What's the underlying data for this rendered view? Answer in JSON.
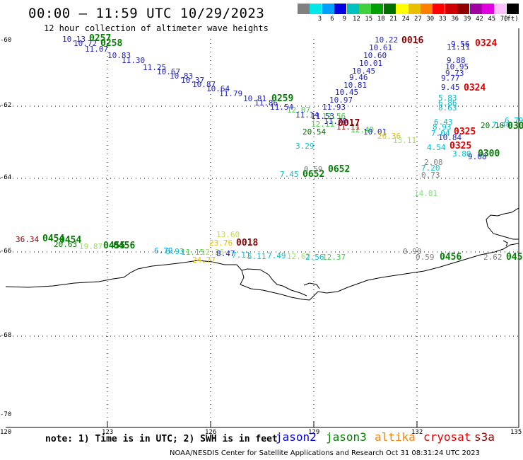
{
  "header": {
    "title": "00:00 – 11:59 UTC 10/29/2023",
    "subtitle": "12 hour collection of altimeter wave heights"
  },
  "legend": {
    "unit": "(ft)",
    "entries": [
      {
        "value": "",
        "color": "#808080"
      },
      {
        "value": "3",
        "color": "#00e8e8"
      },
      {
        "value": "6",
        "color": "#00a0ff"
      },
      {
        "value": "9",
        "color": "#0000e0"
      },
      {
        "value": "12",
        "color": "#00c0c0"
      },
      {
        "value": "15",
        "color": "#40d040"
      },
      {
        "value": "18",
        "color": "#00a000"
      },
      {
        "value": "21",
        "color": "#007000"
      },
      {
        "value": "24",
        "color": "#ffff00"
      },
      {
        "value": "27",
        "color": "#e8c000"
      },
      {
        "value": "30",
        "color": "#ff8000"
      },
      {
        "value": "33",
        "color": "#ff0000"
      },
      {
        "value": "36",
        "color": "#d00000"
      },
      {
        "value": "39",
        "color": "#900000"
      },
      {
        "value": "42",
        "color": "#a000a0"
      },
      {
        "value": "45",
        "color": "#e000e0"
      },
      {
        "value": "70",
        "color": "#ffc0ff"
      },
      {
        "value": "",
        "color": "#000000"
      }
    ]
  },
  "axes": {
    "lat_labels": [
      "-60",
      "-62",
      "-64",
      "-66",
      "-68",
      "-70"
    ],
    "lon_labels": [
      "120",
      "123",
      "126",
      "129",
      "132",
      "135"
    ]
  },
  "observations": [
    {
      "t": "10.13",
      "c": "#2020d0"
    },
    {
      "t": "0257",
      "c": "#008000",
      "big": true
    },
    {
      "t": "10.72",
      "c": "#2020d0"
    },
    {
      "t": "0258",
      "c": "#008000",
      "big": true
    },
    {
      "t": "11.07",
      "c": "#2020d0"
    },
    {
      "t": "10.83",
      "c": "#2020d0"
    },
    {
      "t": "11.30",
      "c": "#2020d0"
    },
    {
      "t": "11.25",
      "c": "#2020d0"
    },
    {
      "t": "10.67",
      "c": "#2020d0"
    },
    {
      "t": "10.83",
      "c": "#2020d0"
    },
    {
      "t": "10.37",
      "c": "#2020d0"
    },
    {
      "t": "10.87",
      "c": "#2020d0"
    },
    {
      "t": "10.64",
      "c": "#2020d0"
    },
    {
      "t": "11.79",
      "c": "#2020d0"
    },
    {
      "t": "10.81",
      "c": "#2020d0"
    },
    {
      "t": "11.86",
      "c": "#2020d0"
    },
    {
      "t": "0259",
      "c": "#008000",
      "big": true
    },
    {
      "t": "11.54",
      "c": "#2020d0"
    },
    {
      "t": "12.07",
      "c": "#40d040"
    },
    {
      "t": "11.14",
      "c": "#2020d0"
    },
    {
      "t": "11.53",
      "c": "#2020d0"
    },
    {
      "t": "12.56",
      "c": "#40d040"
    },
    {
      "t": "11.70",
      "c": "#2020d0"
    },
    {
      "t": "0017",
      "c": "#900000",
      "big": true
    },
    {
      "t": "12.11",
      "c": "#40d040"
    },
    {
      "t": "11.11",
      "c": "#900000"
    },
    {
      "t": "12.40",
      "c": "#40d040"
    },
    {
      "t": "20.54",
      "c": "#007000"
    },
    {
      "t": "10.01",
      "c": "#2020d0"
    },
    {
      "t": "26.36",
      "c": "#e8c000"
    },
    {
      "t": "13.11",
      "c": "#a0e060"
    },
    {
      "t": "3.29",
      "c": "#00c0d0"
    },
    {
      "t": "10.22",
      "c": "#2020d0"
    },
    {
      "t": "0016",
      "c": "#900000",
      "big": true
    },
    {
      "t": "10.61",
      "c": "#2020d0"
    },
    {
      "t": "10.60",
      "c": "#2020d0"
    },
    {
      "t": "10.01",
      "c": "#2020d0"
    },
    {
      "t": "10.45",
      "c": "#2020d0"
    },
    {
      "t": "9.46",
      "c": "#2020d0"
    },
    {
      "t": "10.81",
      "c": "#2020d0"
    },
    {
      "t": "10.45",
      "c": "#2020d0"
    },
    {
      "t": "10.97",
      "c": "#2020d0"
    },
    {
      "t": "11.93",
      "c": "#2020d0"
    },
    {
      "t": "9.56",
      "c": "#2020d0"
    },
    {
      "t": "0324",
      "c": "#e00000",
      "big": true
    },
    {
      "t": "11.11",
      "c": "#2020d0"
    },
    {
      "t": "9.88",
      "c": "#2020d0"
    },
    {
      "t": "10.95",
      "c": "#2020d0"
    },
    {
      "t": "9.73",
      "c": "#2020d0"
    },
    {
      "t": "9.77",
      "c": "#2020d0"
    },
    {
      "t": "9.45",
      "c": "#2020d0"
    },
    {
      "t": "0324",
      "c": "#e00000",
      "big": true
    },
    {
      "t": "5.83",
      "c": "#00c0d0"
    },
    {
      "t": "6.86",
      "c": "#00c0d0"
    },
    {
      "t": "8.63",
      "c": "#00c0d0"
    },
    {
      "t": "6.43",
      "c": "#00c0d0"
    },
    {
      "t": "8.93",
      "c": "#00c0d0"
    },
    {
      "t": "7.04",
      "c": "#00c0d0"
    },
    {
      "t": "0325",
      "c": "#e00000",
      "big": true
    },
    {
      "t": "10.84",
      "c": "#2020d0"
    },
    {
      "t": "0325",
      "c": "#e00000",
      "big": true
    },
    {
      "t": "4.54",
      "c": "#00c0d0"
    },
    {
      "t": "3.80",
      "c": "#00c0d0"
    },
    {
      "t": "9.08",
      "c": "#2020d0"
    },
    {
      "t": "0300",
      "c": "#008000",
      "big": true
    },
    {
      "t": "7.46",
      "c": "#00c0d0"
    },
    {
      "t": "6.79",
      "c": "#00c0d0"
    },
    {
      "t": "20.16",
      "c": "#007000"
    },
    {
      "t": "030",
      "c": "#008000",
      "big": true
    },
    {
      "t": "7.45",
      "c": "#00c0d0"
    },
    {
      "t": "0652",
      "c": "#008000",
      "big": true
    },
    {
      "t": "0652",
      "c": "#008000",
      "big": true
    },
    {
      "t": "0.59",
      "c": "#808080"
    },
    {
      "t": "2.08",
      "c": "#808080"
    },
    {
      "t": "7.20",
      "c": "#00c0d0"
    },
    {
      "t": "0.73",
      "c": "#808080"
    },
    {
      "t": "14.81",
      "c": "#80e080"
    },
    {
      "t": "36.34",
      "c": "#900000"
    },
    {
      "t": "0454",
      "c": "#008000",
      "big": true
    },
    {
      "t": "0454",
      "c": "#008000",
      "big": true
    },
    {
      "t": "20.63",
      "c": "#007000"
    },
    {
      "t": "19.87",
      "c": "#a0e060"
    },
    {
      "t": "0455",
      "c": "#008000",
      "big": true
    },
    {
      "t": "0456",
      "c": "#008000",
      "big": true
    },
    {
      "t": "13.60",
      "c": "#c0e040"
    },
    {
      "t": "23.76",
      "c": "#e8c000"
    },
    {
      "t": "0018",
      "c": "#900000",
      "big": true
    },
    {
      "t": "6.79",
      "c": "#00a0ff"
    },
    {
      "t": "6.93",
      "c": "#00c0d0"
    },
    {
      "t": "11.15",
      "c": "#40d040"
    },
    {
      "t": "12.26",
      "c": "#a0e060"
    },
    {
      "t": "8.47",
      "c": "#2020d0"
    },
    {
      "t": "7.11",
      "c": "#00c0d0"
    },
    {
      "t": "5.11",
      "c": "#00c0d0"
    },
    {
      "t": "7.49",
      "c": "#00c0d0"
    },
    {
      "t": "12.63",
      "c": "#a0e060"
    },
    {
      "t": "2.56",
      "c": "#00c0d0"
    },
    {
      "t": "12.37",
      "c": "#40d040"
    },
    {
      "t": "24.77",
      "c": "#e8c000"
    },
    {
      "t": "0.90",
      "c": "#808080"
    },
    {
      "t": "0.59",
      "c": "#808080"
    },
    {
      "t": "0456",
      "c": "#008000",
      "big": true
    },
    {
      "t": "2.62",
      "c": "#808080"
    },
    {
      "t": "045",
      "c": "#008000",
      "big": true
    }
  ],
  "footer": {
    "note": "note: 1) Time is in UTC; 2) SWH is in feet",
    "satellites": [
      {
        "name": "jason2",
        "color": "#0000e0"
      },
      {
        "name": "jason3",
        "color": "#008000"
      },
      {
        "name": "altika",
        "color": "#ff8000"
      },
      {
        "name": "cryosat",
        "color": "#e00000"
      },
      {
        "name": "s3a",
        "color": "#900000"
      }
    ],
    "credit": "NOAA/NESDIS Center for Satellite Applications and Research    Oct 31 08:31:24 UTC 2023"
  }
}
